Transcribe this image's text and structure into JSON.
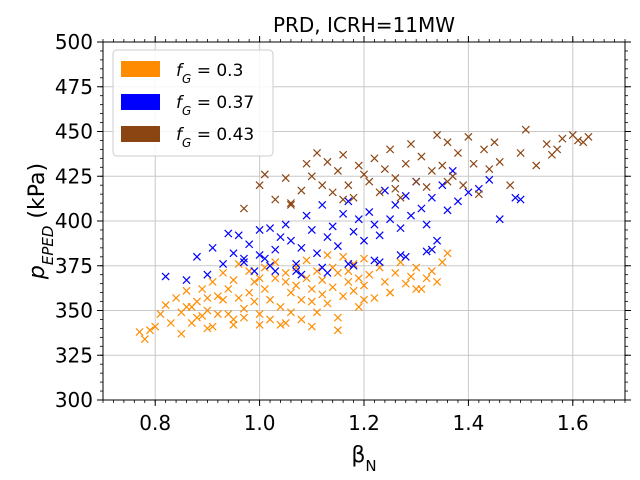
{
  "chart_data": {
    "type": "scatter",
    "title": "PRD, ICRH=11MW",
    "xlabel": {
      "base": "β",
      "sub": "N"
    },
    "ylabel": {
      "base": "p",
      "sub": "EPED",
      "suffix": " (kPa)"
    },
    "xlim": [
      0.7,
      1.7
    ],
    "ylim": [
      300,
      500
    ],
    "xticks": [
      0.8,
      1.0,
      1.2,
      1.4,
      1.6
    ],
    "xtick_labels": [
      "0.8",
      "1.0",
      "1.2",
      "1.4",
      "1.6"
    ],
    "yticks": [
      300,
      325,
      350,
      375,
      400,
      425,
      450,
      475,
      500
    ],
    "ytick_labels": [
      "300",
      "325",
      "350",
      "375",
      "400",
      "425",
      "450",
      "475",
      "500"
    ],
    "grid": true,
    "marker": "x",
    "legend_position": "upper-left",
    "series": [
      {
        "name": "f_G = 0.3",
        "label": {
          "f": "f",
          "sub": "G",
          "eq": " = 0.3"
        },
        "color": "#ff8c00",
        "x": [
          0.77,
          0.78,
          0.8,
          0.82,
          0.83,
          0.84,
          0.85,
          0.85,
          0.86,
          0.87,
          0.87,
          0.88,
          0.88,
          0.89,
          0.89,
          0.9,
          0.9,
          0.91,
          0.91,
          0.92,
          0.92,
          0.93,
          0.93,
          0.94,
          0.94,
          0.95,
          0.95,
          0.96,
          0.96,
          0.97,
          0.97,
          0.98,
          0.98,
          0.99,
          0.99,
          1.0,
          1.0,
          1.01,
          1.01,
          1.02,
          1.02,
          1.03,
          1.03,
          1.04,
          1.04,
          1.05,
          1.05,
          1.06,
          1.06,
          1.07,
          1.07,
          1.08,
          1.08,
          1.09,
          1.09,
          1.1,
          1.1,
          1.11,
          1.11,
          1.12,
          1.12,
          1.13,
          1.13,
          1.14,
          1.14,
          1.15,
          1.15,
          1.16,
          1.16,
          1.17,
          1.17,
          1.18,
          1.18,
          1.19,
          1.19,
          1.2,
          1.2,
          1.21,
          1.22,
          1.23,
          1.24,
          1.25,
          1.26,
          1.27,
          1.28,
          1.29,
          1.3,
          1.31,
          1.32,
          1.33,
          1.34,
          1.35,
          1.36,
          0.79,
          0.81,
          0.86,
          0.9,
          0.95,
          1.0,
          1.05,
          1.1,
          1.15,
          1.2,
          1.25,
          1.3
        ],
        "y": [
          338,
          334,
          341,
          353,
          343,
          357,
          349,
          337,
          361,
          352,
          343,
          355,
          346,
          362,
          347,
          350,
          357,
          341,
          366,
          358,
          348,
          371,
          356,
          348,
          362,
          342,
          367,
          357,
          376,
          351,
          346,
          372,
          360,
          355,
          366,
          368,
          348,
          362,
          374,
          356,
          345,
          368,
          377,
          352,
          342,
          366,
          371,
          360,
          349,
          374,
          364,
          356,
          345,
          368,
          378,
          355,
          362,
          372,
          349,
          359,
          367,
          381,
          354,
          374,
          363,
          346,
          371,
          380,
          358,
          366,
          372,
          361,
          376,
          352,
          368,
          364,
          379,
          370,
          357,
          374,
          366,
          360,
          371,
          377,
          365,
          369,
          374,
          362,
          368,
          372,
          366,
          377,
          382,
          339,
          348,
          352,
          340,
          345,
          342,
          343,
          341,
          339,
          356,
          360,
          362
        ]
      },
      {
        "name": "f_G = 0.37",
        "label": {
          "f": "f",
          "sub": "G",
          "eq": " = 0.37"
        },
        "color": "#0000ff",
        "x": [
          0.82,
          0.86,
          0.88,
          0.9,
          0.91,
          0.93,
          0.94,
          0.95,
          0.96,
          0.97,
          0.98,
          0.99,
          1.0,
          1.0,
          1.01,
          1.02,
          1.03,
          1.04,
          1.05,
          1.06,
          1.07,
          1.08,
          1.09,
          1.1,
          1.11,
          1.12,
          1.13,
          1.14,
          1.15,
          1.16,
          1.17,
          1.18,
          1.19,
          1.2,
          1.21,
          1.22,
          1.23,
          1.24,
          1.25,
          1.26,
          1.27,
          1.28,
          1.29,
          1.3,
          1.31,
          1.32,
          1.33,
          1.34,
          1.35,
          1.36,
          1.37,
          1.38,
          1.4,
          1.42,
          1.44,
          1.46,
          1.49,
          1.5,
          1.03,
          1.08,
          1.13,
          1.18,
          1.23,
          1.28,
          1.33,
          0.97,
          1.02,
          1.07,
          1.12,
          1.17,
          1.22,
          1.27,
          1.32
        ],
        "y": [
          369,
          367,
          380,
          370,
          385,
          376,
          393,
          382,
          392,
          379,
          387,
          372,
          381,
          395,
          379,
          396,
          384,
          391,
          398,
          389,
          376,
          385,
          403,
          395,
          382,
          409,
          391,
          397,
          386,
          404,
          411,
          394,
          401,
          389,
          405,
          398,
          392,
          417,
          401,
          409,
          396,
          414,
          403,
          422,
          407,
          398,
          413,
          389,
          420,
          406,
          428,
          411,
          416,
          418,
          423,
          401,
          413,
          412,
          372,
          370,
          371,
          375,
          377,
          380,
          384,
          377,
          375,
          372,
          374,
          376,
          378,
          381,
          383
        ]
      },
      {
        "name": "f_G = 0.43",
        "label": {
          "f": "f",
          "sub": "G",
          "eq": " = 0.43"
        },
        "color": "#8b4513",
        "x": [
          0.97,
          1.0,
          1.01,
          1.03,
          1.05,
          1.06,
          1.08,
          1.09,
          1.1,
          1.11,
          1.12,
          1.13,
          1.14,
          1.15,
          1.16,
          1.17,
          1.18,
          1.19,
          1.2,
          1.21,
          1.22,
          1.23,
          1.24,
          1.25,
          1.26,
          1.27,
          1.28,
          1.29,
          1.3,
          1.31,
          1.32,
          1.33,
          1.34,
          1.35,
          1.36,
          1.37,
          1.38,
          1.39,
          1.4,
          1.41,
          1.42,
          1.43,
          1.44,
          1.45,
          1.46,
          1.48,
          1.5,
          1.51,
          1.53,
          1.55,
          1.56,
          1.57,
          1.58,
          1.6,
          1.61,
          1.62,
          1.63,
          1.06,
          1.16,
          1.26,
          1.36
        ],
        "y": [
          407,
          420,
          426,
          412,
          424,
          409,
          417,
          432,
          425,
          438,
          420,
          433,
          416,
          428,
          437,
          420,
          413,
          431,
          426,
          422,
          435,
          416,
          429,
          440,
          424,
          413,
          432,
          443,
          422,
          436,
          419,
          428,
          448,
          431,
          444,
          425,
          438,
          420,
          447,
          432,
          415,
          440,
          429,
          444,
          433,
          420,
          438,
          451,
          431,
          443,
          437,
          440,
          446,
          448,
          445,
          444,
          447,
          410,
          412,
          418,
          422
        ]
      }
    ]
  }
}
